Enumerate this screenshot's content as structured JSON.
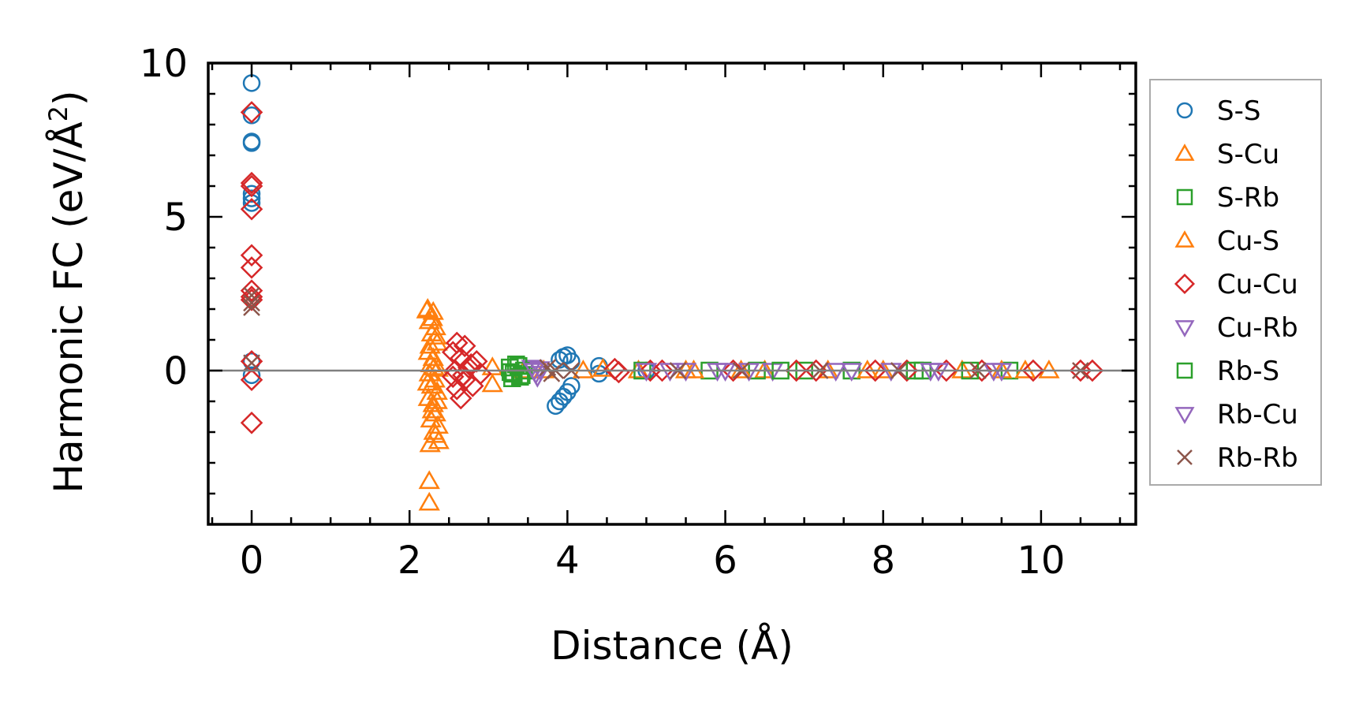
{
  "chart_data": {
    "type": "scatter",
    "xlabel": "Distance (Å)",
    "ylabel_main": "Harmonic FC (eV/Å",
    "ylabel_sup": "2",
    "ylabel_tail": ")",
    "xlim": [
      -0.55,
      11.2
    ],
    "ylim": [
      -5.0,
      10.0
    ],
    "x_ticks": [
      0,
      2,
      4,
      6,
      8,
      10
    ],
    "x_tick_labels": [
      "0",
      "2",
      "4",
      "6",
      "8",
      "10"
    ],
    "y_ticks": [
      0,
      5,
      10
    ],
    "y_tick_labels": [
      "0",
      "5",
      "10"
    ],
    "reference_line_y": 0,
    "legend_position": "outside-right",
    "series": [
      {
        "name": "S-S",
        "marker": "circle",
        "color": "#1f77b4",
        "points": [
          [
            0,
            9.35
          ],
          [
            0,
            8.3
          ],
          [
            0,
            7.45
          ],
          [
            0,
            7.4
          ],
          [
            0,
            5.75
          ],
          [
            0,
            5.6
          ],
          [
            0,
            5.45
          ],
          [
            0,
            0.3
          ],
          [
            0,
            -0.15
          ],
          [
            3.85,
            -1.15
          ],
          [
            3.9,
            -1.0
          ],
          [
            3.95,
            -0.85
          ],
          [
            4.0,
            -0.7
          ],
          [
            4.05,
            -0.5
          ],
          [
            3.9,
            0.35
          ],
          [
            3.95,
            0.45
          ],
          [
            4.0,
            0.5
          ],
          [
            4.05,
            0.3
          ],
          [
            4.4,
            0.15
          ],
          [
            4.4,
            -0.1
          ],
          [
            5.0,
            0.0
          ]
        ]
      },
      {
        "name": "S-Cu",
        "marker": "triangle-up",
        "color": "#ff7f0e",
        "points": [
          [
            2.23,
            2.0
          ],
          [
            2.3,
            1.9
          ],
          [
            2.25,
            1.6
          ],
          [
            2.33,
            1.4
          ],
          [
            2.28,
            1.2
          ],
          [
            2.35,
            0.9
          ],
          [
            2.24,
            0.6
          ],
          [
            2.3,
            0.4
          ],
          [
            2.27,
            0.2
          ],
          [
            2.36,
            0.05
          ],
          [
            2.25,
            -0.1
          ],
          [
            2.32,
            -0.3
          ],
          [
            2.28,
            -0.5
          ],
          [
            2.35,
            -0.7
          ],
          [
            2.24,
            -0.9
          ],
          [
            2.3,
            -1.1
          ],
          [
            2.33,
            -1.4
          ],
          [
            2.27,
            -1.6
          ],
          [
            2.36,
            -1.8
          ],
          [
            2.31,
            -2.0
          ],
          [
            2.37,
            -2.3
          ],
          [
            2.25,
            -3.6
          ],
          [
            2.25,
            -4.3
          ],
          [
            3.05,
            0.1
          ],
          [
            3.05,
            -0.45
          ],
          [
            3.45,
            0.0
          ],
          [
            4.45,
            0.05
          ],
          [
            4.9,
            0.0
          ],
          [
            5.5,
            0.0
          ],
          [
            6.5,
            0.0
          ],
          [
            7.3,
            0.0
          ],
          [
            8.0,
            0.0
          ],
          [
            9.0,
            0.0
          ],
          [
            10.1,
            0.0
          ]
        ]
      },
      {
        "name": "S-Rb",
        "marker": "square",
        "color": "#2ca02c",
        "points": [
          [
            3.27,
            0.1
          ],
          [
            3.32,
            -0.1
          ],
          [
            3.35,
            0.2
          ],
          [
            3.4,
            -0.2
          ],
          [
            3.45,
            0.0
          ],
          [
            3.3,
            -0.25
          ],
          [
            4.95,
            0.0
          ],
          [
            5.8,
            0.0
          ],
          [
            6.4,
            0.0
          ],
          [
            7.0,
            0.0
          ],
          [
            7.6,
            0.0
          ],
          [
            8.5,
            0.0
          ],
          [
            9.6,
            0.0
          ]
        ]
      },
      {
        "name": "Cu-S",
        "marker": "triangle-up",
        "color": "#ff7f0e",
        "points": [
          [
            2.22,
            1.95
          ],
          [
            2.29,
            1.7
          ],
          [
            2.34,
            1.1
          ],
          [
            2.26,
            0.8
          ],
          [
            2.31,
            0.1
          ],
          [
            2.23,
            -0.4
          ],
          [
            2.35,
            -1.0
          ],
          [
            2.29,
            -1.3
          ],
          [
            2.33,
            -2.1
          ],
          [
            2.26,
            -2.4
          ],
          [
            3.7,
            0.0
          ],
          [
            4.2,
            0.0
          ],
          [
            5.6,
            0.0
          ],
          [
            6.2,
            0.0
          ],
          [
            7.8,
            0.0
          ],
          [
            9.5,
            0.0
          ],
          [
            9.8,
            0.0
          ]
        ]
      },
      {
        "name": "Cu-Cu",
        "marker": "diamond",
        "color": "#d62728",
        "points": [
          [
            0,
            8.4
          ],
          [
            0,
            6.1
          ],
          [
            0,
            6.0
          ],
          [
            0,
            5.25
          ],
          [
            0,
            3.75
          ],
          [
            0,
            3.35
          ],
          [
            0,
            2.6
          ],
          [
            0,
            2.4
          ],
          [
            0,
            2.3
          ],
          [
            0,
            0.3
          ],
          [
            0,
            -0.3
          ],
          [
            0,
            -1.7
          ],
          [
            2.55,
            0.6
          ],
          [
            2.6,
            0.9
          ],
          [
            2.65,
            0.4
          ],
          [
            2.7,
            0.8
          ],
          [
            2.55,
            -0.2
          ],
          [
            2.6,
            -0.6
          ],
          [
            2.65,
            -0.9
          ],
          [
            2.7,
            -0.3
          ],
          [
            2.75,
            0.1
          ],
          [
            2.8,
            -0.5
          ],
          [
            2.85,
            0.3
          ],
          [
            2.9,
            -0.1
          ],
          [
            2.58,
            0.0
          ],
          [
            2.68,
            -0.15
          ],
          [
            2.78,
            0.2
          ],
          [
            4.6,
            0.05
          ],
          [
            4.65,
            -0.05
          ],
          [
            5.05,
            0.0
          ],
          [
            5.2,
            0.0
          ],
          [
            6.1,
            0.0
          ],
          [
            6.9,
            0.0
          ],
          [
            7.15,
            0.0
          ],
          [
            7.9,
            0.0
          ],
          [
            8.3,
            0.0
          ],
          [
            8.8,
            0.0
          ],
          [
            9.25,
            0.0
          ],
          [
            9.9,
            0.0
          ],
          [
            10.5,
            0.0
          ],
          [
            10.65,
            0.0
          ]
        ]
      },
      {
        "name": "Cu-Rb",
        "marker": "triangle-down",
        "color": "#9467bd",
        "points": [
          [
            3.55,
            0.1
          ],
          [
            3.6,
            -0.1
          ],
          [
            3.65,
            0.05
          ],
          [
            5.0,
            0.0
          ],
          [
            5.5,
            0.0
          ],
          [
            6.0,
            0.0
          ],
          [
            6.6,
            0.0
          ],
          [
            7.4,
            0.0
          ],
          [
            8.1,
            0.0
          ],
          [
            8.7,
            0.0
          ],
          [
            9.4,
            0.0
          ]
        ]
      },
      {
        "name": "Rb-S",
        "marker": "square",
        "color": "#2ca02c",
        "points": [
          [
            3.28,
            -0.05
          ],
          [
            3.38,
            0.15
          ],
          [
            3.42,
            -0.15
          ],
          [
            6.7,
            0.0
          ],
          [
            8.4,
            0.0
          ],
          [
            9.1,
            0.0
          ]
        ]
      },
      {
        "name": "Rb-Cu",
        "marker": "triangle-down",
        "color": "#9467bd",
        "points": [
          [
            3.58,
            0.0
          ],
          [
            3.62,
            -0.2
          ],
          [
            5.3,
            0.0
          ],
          [
            5.9,
            0.0
          ],
          [
            6.3,
            0.0
          ],
          [
            7.6,
            0.0
          ],
          [
            8.6,
            0.0
          ],
          [
            9.5,
            0.0
          ]
        ]
      },
      {
        "name": "Rb-Rb",
        "marker": "x",
        "color": "#8c564b",
        "points": [
          [
            0,
            2.45
          ],
          [
            0,
            2.2
          ],
          [
            0,
            2.05
          ],
          [
            0,
            0.25
          ],
          [
            3.75,
            0.1
          ],
          [
            3.8,
            -0.1
          ],
          [
            3.85,
            0.0
          ],
          [
            4.05,
            0.0
          ],
          [
            5.4,
            0.0
          ],
          [
            6.2,
            0.0
          ],
          [
            7.2,
            0.0
          ],
          [
            8.2,
            0.0
          ],
          [
            9.2,
            0.0
          ],
          [
            10.5,
            0.0
          ]
        ]
      }
    ]
  }
}
